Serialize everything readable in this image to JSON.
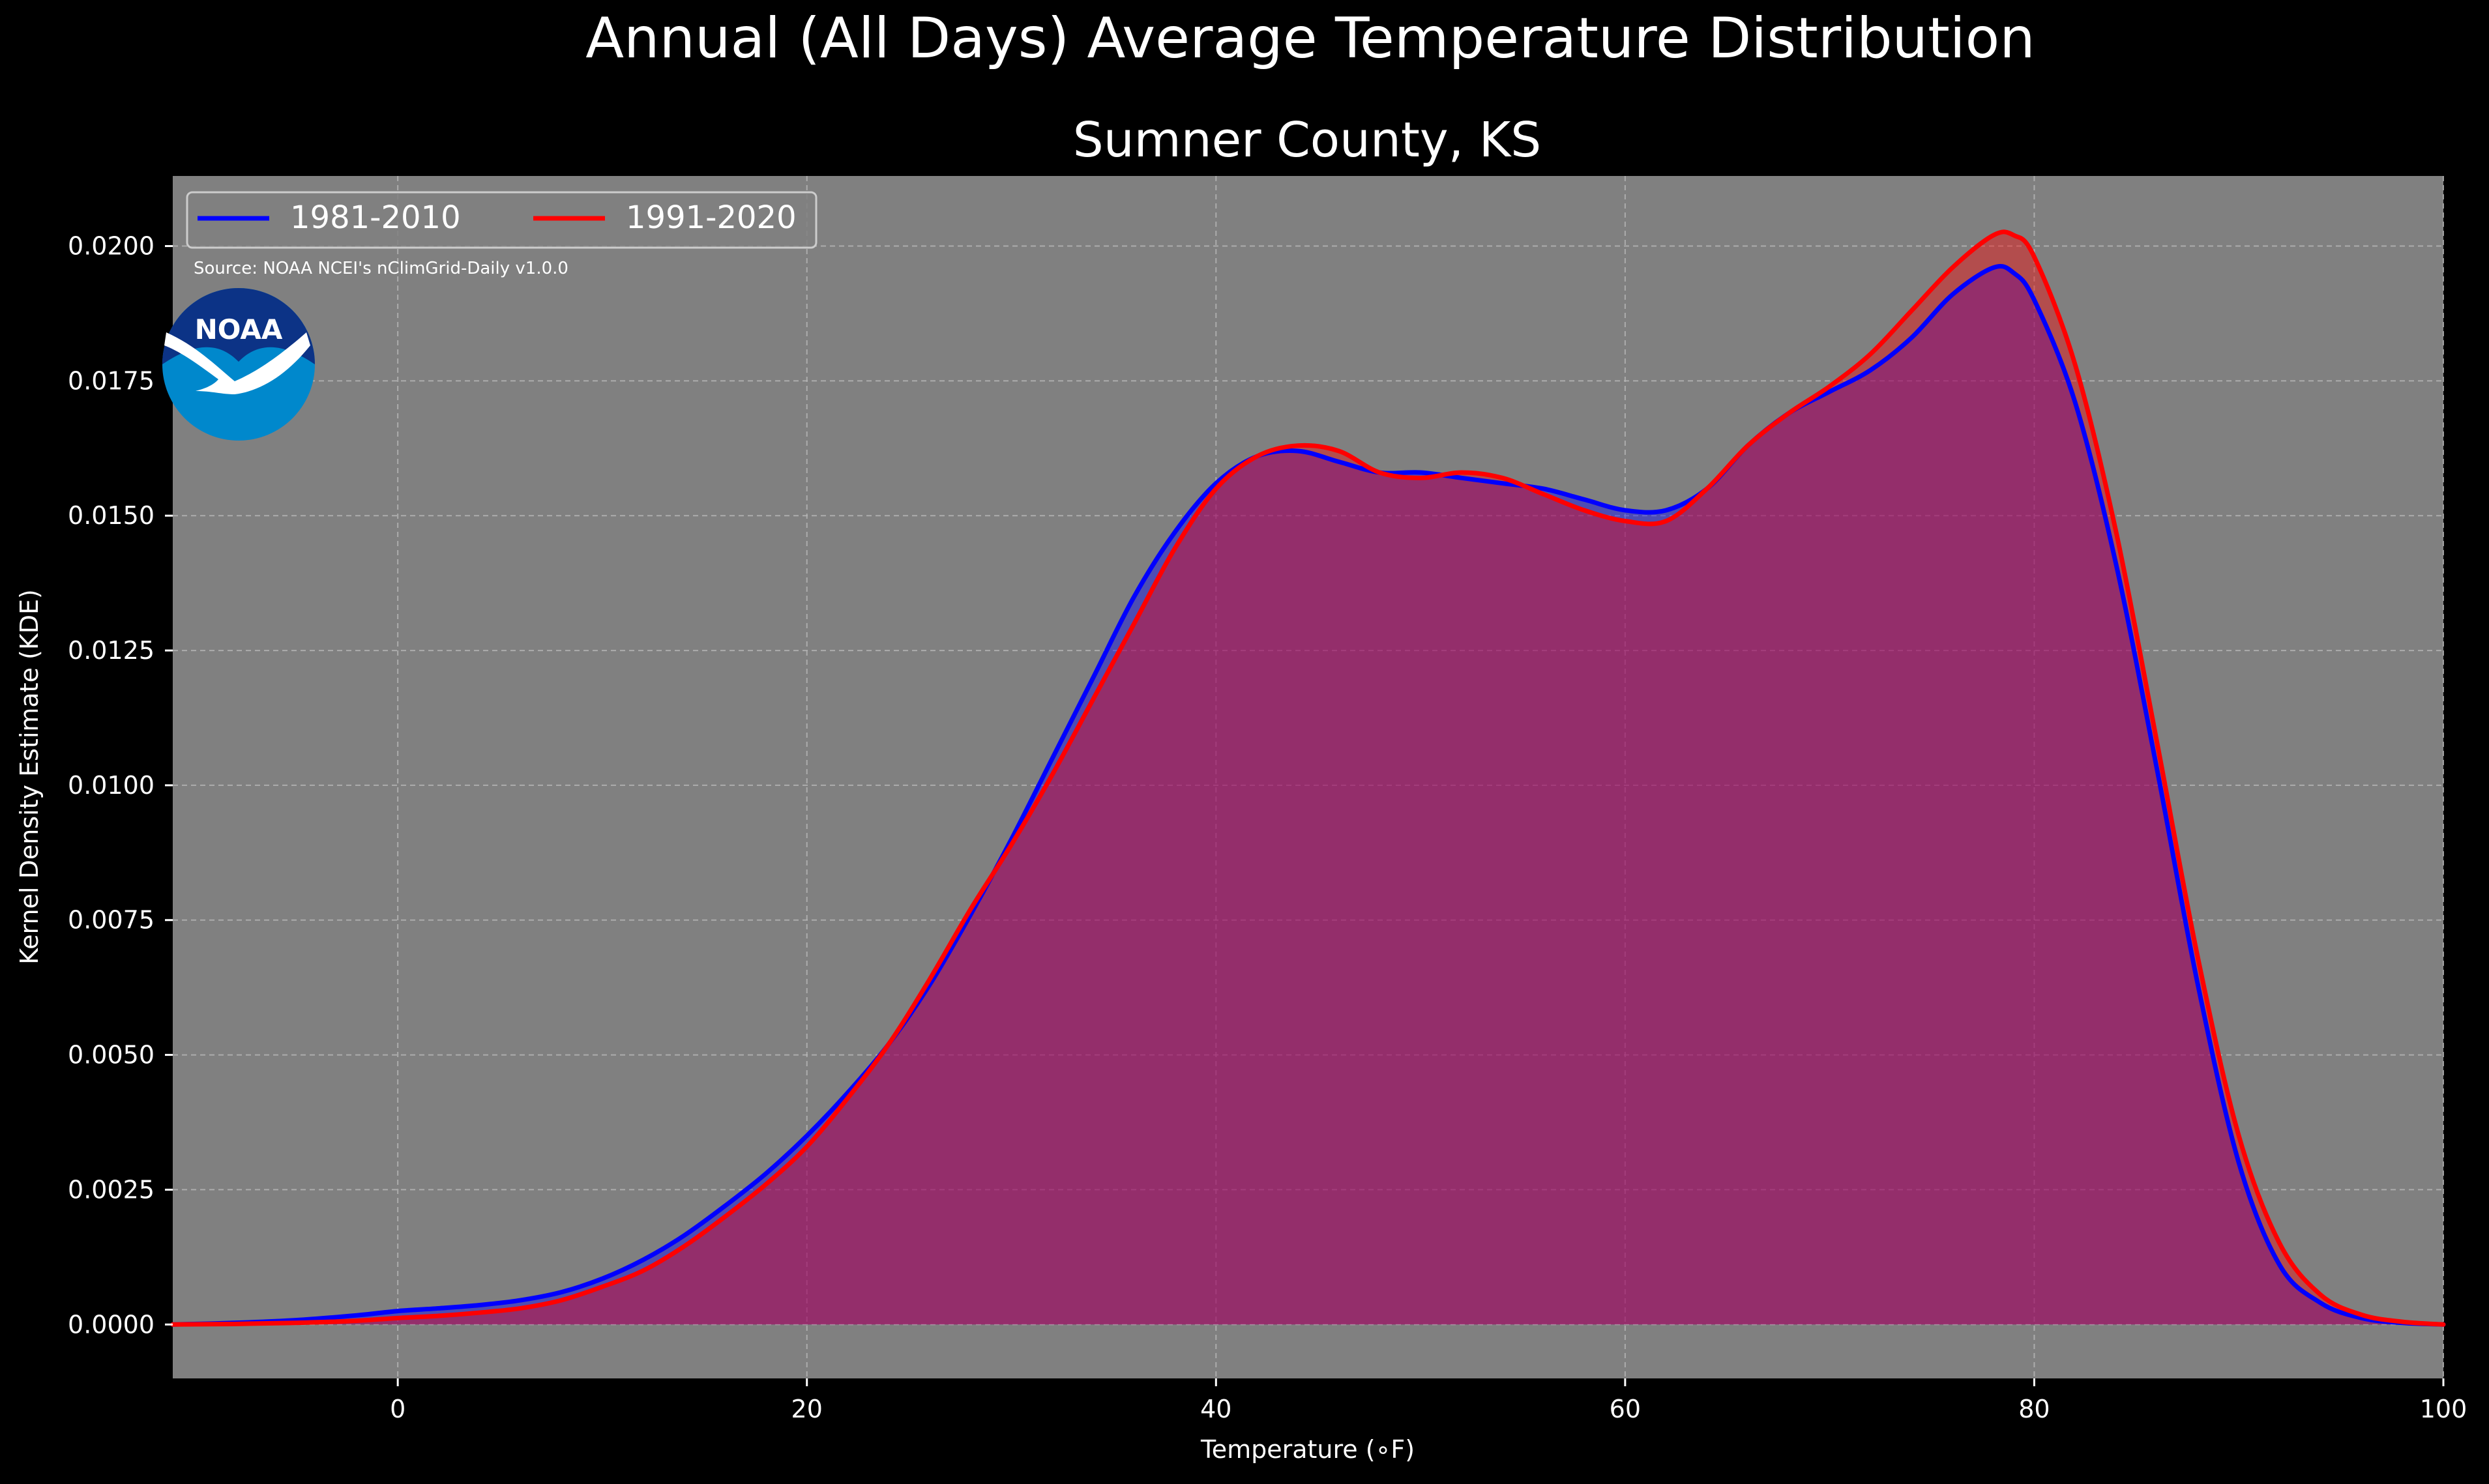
{
  "chart_data": {
    "type": "area",
    "title": "Annual (All Days) Average Temperature Distribution",
    "subtitle": "Sumner County, KS",
    "xlabel": "Temperature (∘F)",
    "ylabel": "Kernel Density Estimate (KDE)",
    "source_note": "Source: NOAA NCEI's nClimGrid-Daily v1.0.0",
    "logo_text": "NOAA",
    "xlim": [
      -11,
      100
    ],
    "ylim": [
      -0.001,
      0.0213
    ],
    "x_ticks": [
      0,
      20,
      40,
      60,
      80,
      100
    ],
    "x_tick_labels": [
      "0",
      "20",
      "40",
      "60",
      "80",
      "100"
    ],
    "y_ticks": [
      0,
      0.0025,
      0.005,
      0.0075,
      0.01,
      0.0125,
      0.015,
      0.0175,
      0.02
    ],
    "y_tick_labels": [
      "0.0000",
      "0.0025",
      "0.0050",
      "0.0075",
      "0.0100",
      "0.0125",
      "0.0150",
      "0.0175",
      "0.0200"
    ],
    "grid": true,
    "legend_position": "top-left",
    "background_color": "#000000",
    "plot_background_color": "#808080",
    "series": [
      {
        "name": "1981-2010",
        "color": "#0000ff",
        "fill_color": "#0000ff",
        "x": [
          -11,
          -8,
          -5,
          -2,
          0,
          2,
          4,
          6,
          8,
          10,
          12,
          14,
          16,
          18,
          20,
          22,
          24,
          26,
          28,
          30,
          32,
          34,
          36,
          38,
          40,
          42,
          44,
          46,
          48,
          50,
          52,
          54,
          56,
          58,
          60,
          62,
          64,
          66,
          68,
          70,
          72,
          74,
          76,
          78,
          79,
          80,
          82,
          84,
          86,
          88,
          90,
          92,
          94,
          96,
          98,
          100
        ],
        "y": [
          0.0,
          3e-05,
          8e-05,
          0.00017,
          0.00025,
          0.0003,
          0.00036,
          0.00045,
          0.0006,
          0.00085,
          0.0012,
          0.00165,
          0.0022,
          0.0028,
          0.0035,
          0.0043,
          0.0052,
          0.0063,
          0.0076,
          0.009,
          0.0105,
          0.012,
          0.0135,
          0.0147,
          0.0156,
          0.0161,
          0.0162,
          0.016,
          0.0158,
          0.0158,
          0.0157,
          0.0156,
          0.0155,
          0.0153,
          0.0151,
          0.0151,
          0.0155,
          0.0163,
          0.0169,
          0.0173,
          0.0177,
          0.0183,
          0.0191,
          0.0196,
          0.0195,
          0.019,
          0.0171,
          0.0141,
          0.0103,
          0.0063,
          0.003,
          0.0011,
          0.0004,
          0.00012,
          3e-05,
          0.0
        ]
      },
      {
        "name": "1991-2020",
        "color": "#ff0000",
        "fill_color": "#ff0000",
        "x": [
          -11,
          -8,
          -5,
          -2,
          0,
          2,
          4,
          6,
          8,
          10,
          12,
          14,
          16,
          18,
          20,
          22,
          24,
          26,
          28,
          30,
          32,
          34,
          36,
          38,
          40,
          42,
          44,
          46,
          48,
          50,
          52,
          54,
          56,
          58,
          60,
          62,
          64,
          66,
          68,
          70,
          72,
          74,
          76,
          78,
          79,
          80,
          82,
          84,
          86,
          88,
          90,
          92,
          94,
          96,
          98,
          100
        ],
        "y": [
          0.0,
          1e-05,
          3e-05,
          7e-05,
          0.00012,
          0.00016,
          0.00022,
          0.0003,
          0.00045,
          0.0007,
          0.001,
          0.00145,
          0.002,
          0.0026,
          0.0033,
          0.0042,
          0.0052,
          0.0064,
          0.0077,
          0.0089,
          0.0102,
          0.0116,
          0.013,
          0.0144,
          0.0155,
          0.0161,
          0.0163,
          0.0162,
          0.0158,
          0.0157,
          0.0158,
          0.0157,
          0.0154,
          0.0151,
          0.0149,
          0.0149,
          0.0155,
          0.0163,
          0.0169,
          0.0174,
          0.018,
          0.0188,
          0.0196,
          0.0202,
          0.0202,
          0.0198,
          0.0178,
          0.0147,
          0.0108,
          0.0068,
          0.0035,
          0.0015,
          0.00055,
          0.00018,
          5e-05,
          0.0
        ]
      }
    ]
  }
}
